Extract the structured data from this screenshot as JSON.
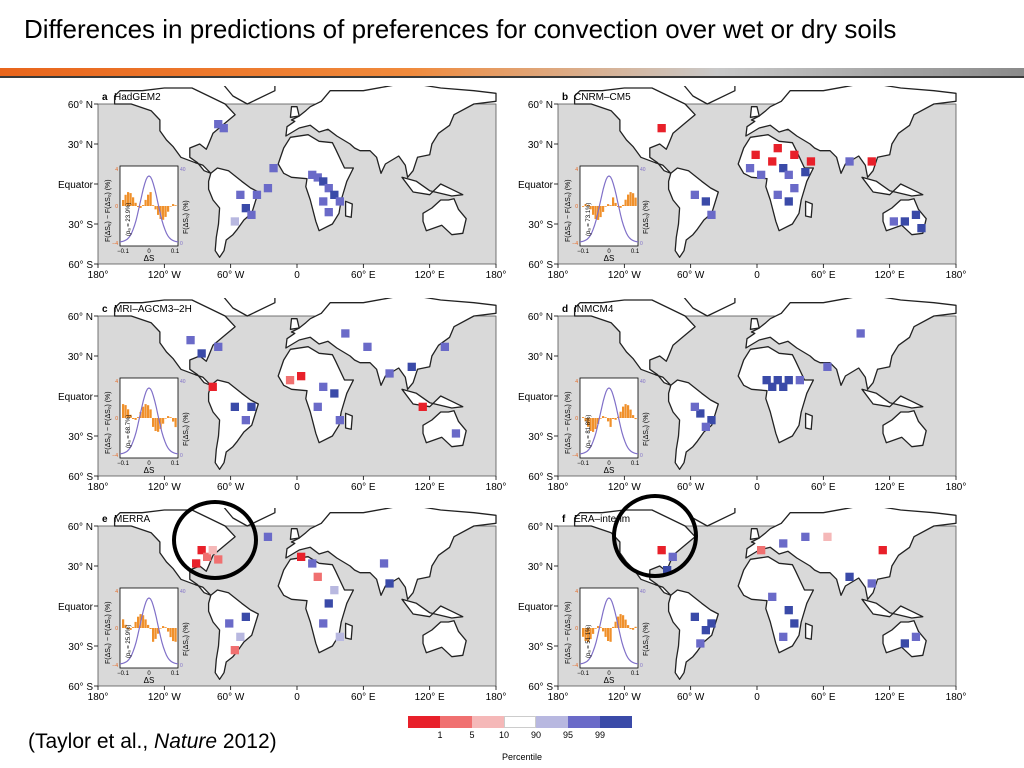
{
  "slide": {
    "title": "Differences in predictions of preferences for convection over wet or dry soils",
    "citation_prefix": "(Taylor et al., ",
    "citation_journal": "Nature",
    "citation_suffix": " 2012)"
  },
  "colors": {
    "ocean": "#d9d9d9",
    "land": "#ffffff",
    "coast": "#222222",
    "hist_fill": "#f0902a",
    "hist_line": "#8070c8",
    "accent_orange": "#e8651c"
  },
  "axes": {
    "lat_labels": [
      "60° N",
      "30° N",
      "Equator",
      "30° S",
      "60° S"
    ],
    "lon_labels": [
      "180°",
      "120° W",
      "60° W",
      "0",
      "60° E",
      "120° E",
      "180°"
    ]
  },
  "panels": [
    {
      "letter": "a",
      "name": "HadGEM2",
      "inset_value": "(pₐ = 23.9%)",
      "circled": false
    },
    {
      "letter": "b",
      "name": "CNRM–CM5",
      "inset_value": "(pₐ = 73.1%)",
      "circled": false
    },
    {
      "letter": "c",
      "name": "MRI–AGCM3–2H",
      "inset_value": "(pₐ = 68.7%)",
      "circled": false
    },
    {
      "letter": "d",
      "name": "INMCM4",
      "inset_value": "(pₐ = 81.8%)",
      "circled": false
    },
    {
      "letter": "e",
      "name": "MERRA",
      "inset_value": "(pₐ = 25.9%)",
      "circled": true
    },
    {
      "letter": "f",
      "name": "ERA–interim",
      "inset_value": "(pₐ = 51.1%)",
      "circled": true
    }
  ],
  "inset": {
    "left_axis": "F(ΔSₑ) − F(ΔSₒ) (%)",
    "right_axis": "F(ΔSₒ) (%)",
    "x_label": "ΔS",
    "x_ticks": [
      "−0.1",
      "0",
      "0.1"
    ],
    "left_ticks": [
      "4",
      "0",
      "−4"
    ],
    "right_ticks": [
      "40",
      "0"
    ]
  },
  "legend": {
    "label": "Percentile",
    "ticks": [
      "1",
      "5",
      "10",
      "90",
      "95",
      "99"
    ],
    "colors": [
      "#e8202a",
      "#f07070",
      "#f5b8b8",
      "#ffffff",
      "#b8b8e0",
      "#6a6ac8",
      "#3a4aa8"
    ]
  }
}
